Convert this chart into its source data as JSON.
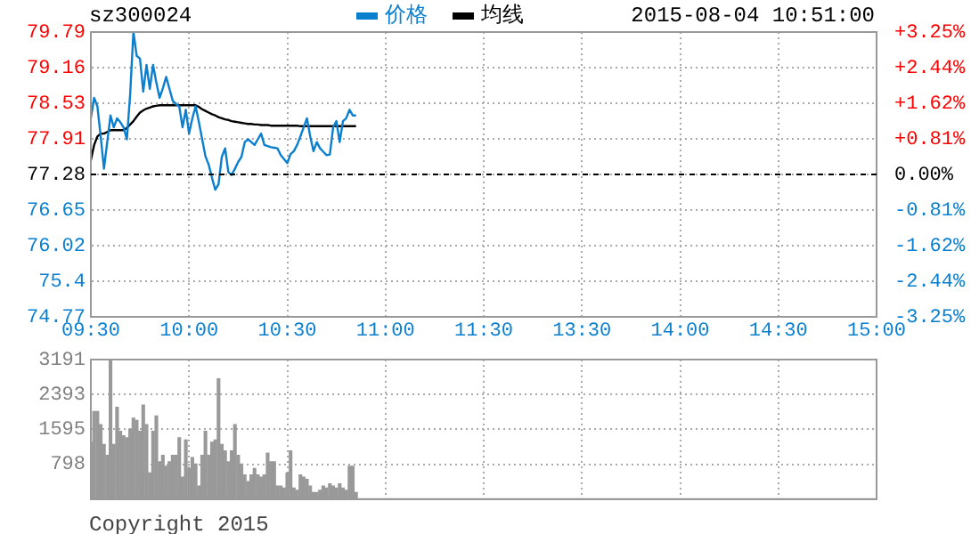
{
  "chart_data": [
    {
      "type": "line",
      "title": "sz300024",
      "subtitle": "2015-08-04 10:51:00",
      "legend": "top",
      "grid": true,
      "marker": "none",
      "categories": [
        "09:30",
        null,
        null,
        null,
        null,
        null,
        null,
        null,
        null,
        null,
        null,
        null,
        null,
        null,
        null,
        null,
        null,
        null,
        null,
        null,
        null,
        null,
        null,
        null,
        null,
        null,
        null,
        null,
        null,
        null,
        "10:00",
        null,
        null,
        null,
        null,
        null,
        null,
        null,
        null,
        null,
        null,
        null,
        null,
        null,
        null,
        null,
        null,
        null,
        null,
        null,
        null,
        null,
        null,
        null,
        null,
        null,
        null,
        null,
        null,
        null,
        "10:30",
        null,
        null,
        null,
        null,
        null,
        null,
        null,
        null,
        null,
        null,
        null,
        null,
        null,
        null,
        null,
        null,
        null,
        null,
        null,
        null,
        null,
        null,
        null,
        null,
        null,
        null,
        null,
        null,
        null,
        "11:00",
        null,
        null,
        null,
        null,
        null,
        null,
        null,
        null,
        null,
        null,
        null,
        null,
        null,
        null,
        null,
        null,
        null,
        null,
        null,
        null,
        null,
        null,
        null,
        null,
        null,
        null,
        null,
        null,
        null,
        "11:30",
        null,
        null,
        null,
        null,
        null,
        null,
        null,
        null,
        null,
        null,
        null,
        null,
        null,
        null,
        null,
        null,
        null,
        null,
        null,
        null,
        null,
        null,
        null,
        null,
        null,
        null,
        null,
        null,
        null,
        "13:30",
        null,
        null,
        null,
        null,
        null,
        null,
        null,
        null,
        null,
        null,
        null,
        null,
        null,
        null,
        null,
        null,
        null,
        null,
        null,
        null,
        null,
        null,
        null,
        null,
        null,
        null,
        null,
        null,
        null,
        "14:00",
        null,
        null,
        null,
        null,
        null,
        null,
        null,
        null,
        null,
        null,
        null,
        null,
        null,
        null,
        null,
        null,
        null,
        null,
        null,
        null,
        null,
        null,
        null,
        null,
        null,
        null,
        null,
        null,
        null,
        "14:30",
        null,
        null,
        null,
        null,
        null,
        null,
        null,
        null,
        null,
        null,
        null,
        null,
        null,
        null,
        null,
        null,
        null,
        null,
        null,
        null,
        null,
        null,
        null,
        null,
        null,
        null,
        null,
        null,
        null,
        "15:00"
      ],
      "ylim": [
        74.77,
        79.79
      ],
      "yticks": [
        74.77,
        75.4,
        76.02,
        76.65,
        77.28,
        77.91,
        78.53,
        79.16,
        79.79
      ],
      "y2lim": [
        -3.25,
        3.25
      ],
      "y2ticks": [
        {
          "value": -3.25,
          "label": "-3.25%"
        },
        {
          "value": -2.44,
          "label": "-2.44%"
        },
        {
          "value": -1.62,
          "label": "-1.62%"
        },
        {
          "value": -0.81,
          "label": "-0.81%"
        },
        {
          "value": 0,
          "label": "0.00%"
        },
        {
          "value": 0.81,
          "label": "+0.81%"
        },
        {
          "value": 1.62,
          "label": "+1.62%"
        },
        {
          "value": 2.44,
          "label": "+2.44%"
        },
        {
          "value": 3.25,
          "label": "+3.25%"
        }
      ],
      "ref_lines": [
        {
          "axis": "y",
          "value": 77.28,
          "color": "#000000",
          "line_style": "dashed"
        }
      ],
      "series": [
        {
          "name": "价格",
          "color": "#0a7fd0",
          "values": [
            78.27,
            78.63,
            78.48,
            77.95,
            77.38,
            77.85,
            78.32,
            78.11,
            78.27,
            78.2,
            78.11,
            77.9,
            78.69,
            79.79,
            79.37,
            79.32,
            78.74,
            79.21,
            78.79,
            79.21,
            78.9,
            78.63,
            78.8,
            79.0,
            78.79,
            78.58,
            78.52,
            78.48,
            78.11,
            78.42,
            78.0,
            78.27,
            78.48,
            78.2,
            77.9,
            77.6,
            77.45,
            77.22,
            77.01,
            77.11,
            77.59,
            77.74,
            77.32,
            77.27,
            77.38,
            77.5,
            77.59,
            77.85,
            77.9,
            77.85,
            77.8,
            77.9,
            78.0,
            77.8,
            77.78,
            77.76,
            77.75,
            77.74,
            77.62,
            77.55,
            77.48,
            77.64,
            77.69,
            77.8,
            77.95,
            78.11,
            78.27,
            77.95,
            77.69,
            77.85,
            77.74,
            77.68,
            77.62,
            77.63,
            78.11,
            78.22,
            77.85,
            78.22,
            78.27,
            78.42,
            78.32,
            78.32,
            null,
            null,
            null,
            null,
            null,
            null,
            null,
            null,
            null,
            null,
            null,
            null,
            null,
            null,
            null,
            null,
            null,
            null,
            null,
            null,
            null,
            null,
            null,
            null,
            null,
            null,
            null,
            null,
            null,
            null,
            null,
            null,
            null,
            null,
            null,
            null,
            null,
            null,
            null,
            null,
            null,
            null,
            null,
            null,
            null,
            null,
            null,
            null,
            null,
            null,
            null,
            null,
            null,
            null,
            null,
            null,
            null,
            null,
            null,
            null,
            null,
            null,
            null,
            null,
            null,
            null,
            null,
            null,
            null,
            null,
            null,
            null,
            null,
            null,
            null,
            null,
            null,
            null,
            null,
            null,
            null,
            null,
            null,
            null,
            null,
            null,
            null,
            null,
            null,
            null,
            null,
            null,
            null,
            null,
            null,
            null,
            null,
            null,
            null,
            null,
            null,
            null,
            null,
            null,
            null,
            null,
            null,
            null,
            null,
            null,
            null,
            null,
            null,
            null,
            null,
            null,
            null,
            null,
            null,
            null,
            null,
            null,
            null,
            null,
            null,
            null,
            null,
            null,
            null,
            null,
            null,
            null,
            null,
            null,
            null,
            null,
            null,
            null,
            null,
            null,
            null,
            null,
            null,
            null,
            null,
            null,
            null,
            null,
            null,
            null,
            null,
            null,
            null,
            null,
            null,
            null,
            null,
            null,
            null
          ]
        },
        {
          "name": "均线",
          "color": "#000000",
          "values": [
            77.53,
            77.8,
            77.95,
            78.0,
            78.0,
            78.03,
            78.06,
            78.06,
            78.06,
            78.06,
            78.06,
            78.1,
            78.16,
            78.22,
            78.3,
            78.37,
            78.41,
            78.44,
            78.46,
            78.48,
            78.49,
            78.5,
            78.5,
            78.5,
            78.5,
            78.5,
            78.5,
            78.5,
            78.5,
            78.5,
            78.5,
            78.5,
            78.5,
            78.47,
            78.43,
            78.4,
            78.37,
            78.34,
            78.32,
            78.29,
            78.27,
            78.25,
            78.24,
            78.22,
            78.21,
            78.2,
            78.19,
            78.18,
            78.17,
            78.17,
            78.16,
            78.16,
            78.15,
            78.15,
            78.15,
            78.14,
            78.14,
            78.14,
            78.14,
            78.14,
            78.14,
            78.14,
            78.14,
            78.14,
            78.13,
            78.13,
            78.13,
            78.13,
            78.13,
            78.13,
            78.13,
            78.13,
            78.13,
            78.13,
            78.13,
            78.13,
            78.13,
            78.13,
            78.13,
            78.13,
            78.13,
            78.13,
            null,
            null,
            null,
            null,
            null,
            null,
            null,
            null,
            null,
            null,
            null,
            null,
            null,
            null,
            null,
            null,
            null,
            null,
            null,
            null,
            null,
            null,
            null,
            null,
            null,
            null,
            null,
            null,
            null,
            null,
            null,
            null,
            null,
            null,
            null,
            null,
            null,
            null,
            null,
            null,
            null,
            null,
            null,
            null,
            null,
            null,
            null,
            null,
            null,
            null,
            null,
            null,
            null,
            null,
            null,
            null,
            null,
            null,
            null,
            null,
            null,
            null,
            null,
            null,
            null,
            null,
            null,
            null,
            null,
            null,
            null,
            null,
            null,
            null,
            null,
            null,
            null,
            null,
            null,
            null,
            null,
            null,
            null,
            null,
            null,
            null,
            null,
            null,
            null,
            null,
            null,
            null,
            null,
            null,
            null,
            null,
            null,
            null,
            null,
            null,
            null,
            null,
            null,
            null,
            null,
            null,
            null,
            null,
            null,
            null,
            null,
            null,
            null,
            null,
            null,
            null,
            null,
            null,
            null,
            null,
            null,
            null,
            null,
            null,
            null,
            null,
            null,
            null,
            null,
            null,
            null,
            null,
            null,
            null,
            null,
            null,
            null,
            null,
            null,
            null,
            null,
            null,
            null,
            null,
            null,
            null,
            null,
            null,
            null,
            null,
            null,
            null,
            null,
            null,
            null,
            null,
            null,
            null,
            null
          ]
        }
      ]
    },
    {
      "type": "bar",
      "grid": true,
      "tick_labels": "y",
      "color": "#999999",
      "annotations": [
        "Copyright 2015"
      ],
      "categories": [
        null,
        null,
        null,
        null,
        null,
        null,
        null,
        null,
        null,
        null,
        null,
        null,
        null,
        null,
        null,
        null,
        null,
        null,
        null,
        null,
        null,
        null,
        null,
        null,
        null,
        null,
        null,
        null,
        null,
        null,
        null,
        null,
        null,
        null,
        null,
        null,
        null,
        null,
        null,
        null,
        null,
        null,
        null,
        null,
        null,
        null,
        null,
        null,
        null,
        null,
        null,
        null,
        null,
        null,
        null,
        null,
        null,
        null,
        null,
        null,
        null,
        null,
        null,
        null,
        null,
        null,
        null,
        null,
        null,
        null,
        null,
        null,
        null,
        null,
        null,
        null,
        null,
        null,
        null,
        null,
        null,
        null,
        null,
        null,
        null,
        null,
        null,
        null,
        null,
        null,
        null,
        null,
        null,
        null,
        null,
        null,
        null,
        null,
        null,
        null,
        null,
        null,
        null,
        null,
        null,
        null,
        null,
        null,
        null,
        null,
        null,
        null,
        null,
        null,
        null,
        null,
        null,
        null,
        null,
        null,
        null,
        null,
        null,
        null,
        null,
        null,
        null,
        null,
        null,
        null,
        null,
        null,
        null,
        null,
        null,
        null,
        null,
        null,
        null,
        null,
        null,
        null,
        null,
        null,
        null,
        null,
        null,
        null,
        null,
        null,
        null,
        null,
        null,
        null,
        null,
        null,
        null,
        null,
        null,
        null,
        null,
        null,
        null,
        null,
        null,
        null,
        null,
        null,
        null,
        null,
        null,
        null,
        null,
        null,
        null,
        null,
        null,
        null,
        null,
        null,
        null,
        null,
        null,
        null,
        null,
        null,
        null,
        null,
        null,
        null,
        null,
        null,
        null,
        null,
        null,
        null,
        null,
        null,
        null,
        null,
        null,
        null,
        null,
        null,
        null,
        null,
        null,
        null,
        null,
        null,
        null,
        null,
        null,
        null,
        null,
        null,
        null,
        null,
        null,
        null,
        null,
        null,
        null,
        null,
        null,
        null,
        null,
        null,
        null,
        null,
        null,
        null,
        null,
        null,
        null,
        null,
        null,
        null,
        null,
        null,
        null
      ],
      "ylim": [
        0,
        3191
      ],
      "yticks": [
        798,
        1595,
        2393,
        3191
      ],
      "values": [
        1300,
        2000,
        2000,
        1700,
        1250,
        1000,
        3191,
        1250,
        2100,
        1550,
        1450,
        1400,
        1600,
        1850,
        1800,
        1550,
        2150,
        1700,
        600,
        1550,
        1900,
        850,
        1000,
        750,
        850,
        1000,
        1000,
        1400,
        500,
        1350,
        700,
        950,
        800,
        300,
        1000,
        1550,
        1000,
        1300,
        1350,
        2750,
        1250,
        1100,
        850,
        1100,
        1700,
        1000,
        800,
        550,
        400,
        550,
        700,
        550,
        500,
        550,
        1050,
        850,
        850,
        300,
        300,
        250,
        600,
        1100,
        250,
        200,
        550,
        500,
        450,
        300,
        150,
        150,
        200,
        300,
        250,
        350,
        300,
        250,
        350,
        250,
        200,
        750,
        750,
        150,
        null,
        null,
        null,
        null,
        null,
        null,
        null,
        null,
        null,
        null,
        null,
        null,
        null,
        null,
        null,
        null,
        null,
        null,
        null,
        null,
        null,
        null,
        null,
        null,
        null,
        null,
        null,
        null,
        null,
        null,
        null,
        null,
        null,
        null,
        null,
        null,
        null,
        null,
        null,
        null,
        null,
        null,
        null,
        null,
        null,
        null,
        null,
        null,
        null,
        null,
        null,
        null,
        null,
        null,
        null,
        null,
        null,
        null,
        null,
        null,
        null,
        null,
        null,
        null,
        null,
        null,
        null,
        null,
        null,
        null,
        null,
        null,
        null,
        null,
        null,
        null,
        null,
        null,
        null,
        null,
        null,
        null,
        null,
        null,
        null,
        null,
        null,
        null,
        null,
        null,
        null,
        null,
        null,
        null,
        null,
        null,
        null,
        null,
        null,
        null,
        null,
        null,
        null,
        null,
        null,
        null,
        null,
        null,
        null,
        null,
        null,
        null,
        null,
        null,
        null,
        null,
        null,
        null,
        null,
        null,
        null,
        null,
        null,
        null,
        null,
        null,
        null,
        null,
        null,
        null,
        null,
        null,
        null,
        null,
        null,
        null,
        null,
        null,
        null,
        null,
        null,
        null,
        null,
        null,
        null,
        null,
        null,
        null,
        null,
        null,
        null,
        null,
        null,
        null,
        null,
        null,
        null,
        null,
        null
      ]
    }
  ]
}
